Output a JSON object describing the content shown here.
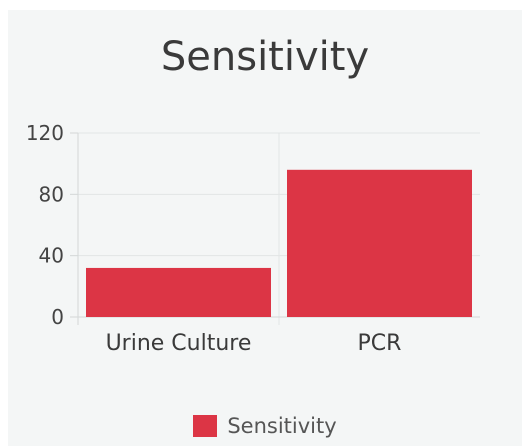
{
  "chart_data": {
    "type": "bar",
    "title": "Sensitivity",
    "categories": [
      "Urine Culture",
      "PCR"
    ],
    "series": [
      {
        "name": "Sensitivity",
        "values": [
          32,
          96
        ],
        "color": "#dc3545"
      }
    ],
    "yticks": [
      0,
      40,
      80,
      120
    ],
    "ylim": [
      0,
      120
    ],
    "grid": true,
    "legend_position": "bottom"
  }
}
